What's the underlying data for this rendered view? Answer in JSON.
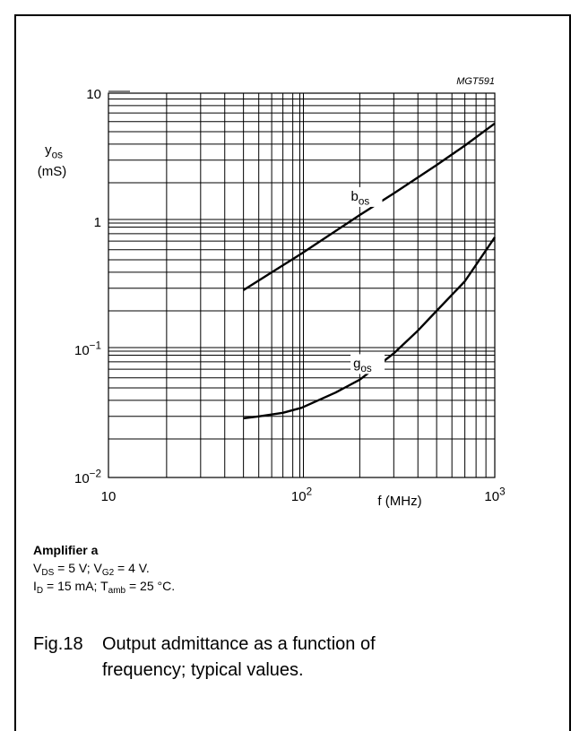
{
  "figure_code": "MGT591",
  "conditions": {
    "heading": "Amplifier a",
    "line1": {
      "v_ds": "V",
      "v_ds_sub": "DS",
      "v_ds_value": " = 5 V; ",
      "v_g2": "V",
      "v_g2_sub": "G2",
      "v_g2_value": " = 4 V."
    },
    "line2": {
      "i_d": "I",
      "i_d_sub": "D",
      "i_d_value": " = 15 mA; ",
      "t": "T",
      "t_sub": "amb",
      "t_value": " = 25 °C."
    }
  },
  "caption": {
    "number": "Fig.18",
    "line1": "Output admittance as a function of",
    "line2": "frequency; typical values."
  },
  "chart_data": {
    "type": "line",
    "x_scale": "log",
    "y_scale": "log",
    "xlim": [
      10,
      1000
    ],
    "ylim": [
      0.01,
      10
    ],
    "grid": true,
    "ylabel": {
      "symbol": "y",
      "sub": "os",
      "unit": "(mS)"
    },
    "xlabel": "f (MHz)",
    "x_ticks": [
      {
        "value": 10,
        "base": "10",
        "exp": ""
      },
      {
        "value": 100,
        "base": "10",
        "exp": "2"
      },
      {
        "value": 1000,
        "base": "10",
        "exp": "3"
      }
    ],
    "y_ticks": [
      {
        "value": 10,
        "base": "10",
        "exp": ""
      },
      {
        "value": 1,
        "base": "1",
        "exp": ""
      },
      {
        "value": 0.1,
        "base": "10",
        "exp": "−1"
      },
      {
        "value": 0.01,
        "base": "10",
        "exp": "−2"
      }
    ],
    "series": [
      {
        "name": "bos",
        "label_base": "b",
        "label_sub": "os",
        "label_at": {
          "x": 180,
          "y": 1.45
        },
        "x": [
          50,
          100,
          200,
          300,
          500,
          700,
          1000
        ],
        "y": [
          0.29,
          0.56,
          1.12,
          1.65,
          2.75,
          3.9,
          5.8
        ]
      },
      {
        "name": "gos",
        "label_base": "g",
        "label_sub": "os",
        "label_at": {
          "x": 185,
          "y": 0.072
        },
        "x": [
          50,
          60,
          70,
          80,
          100,
          150,
          200,
          300,
          400,
          500,
          700,
          1000
        ],
        "y": [
          0.029,
          0.03,
          0.031,
          0.032,
          0.035,
          0.046,
          0.058,
          0.093,
          0.14,
          0.2,
          0.34,
          0.75
        ]
      }
    ]
  }
}
